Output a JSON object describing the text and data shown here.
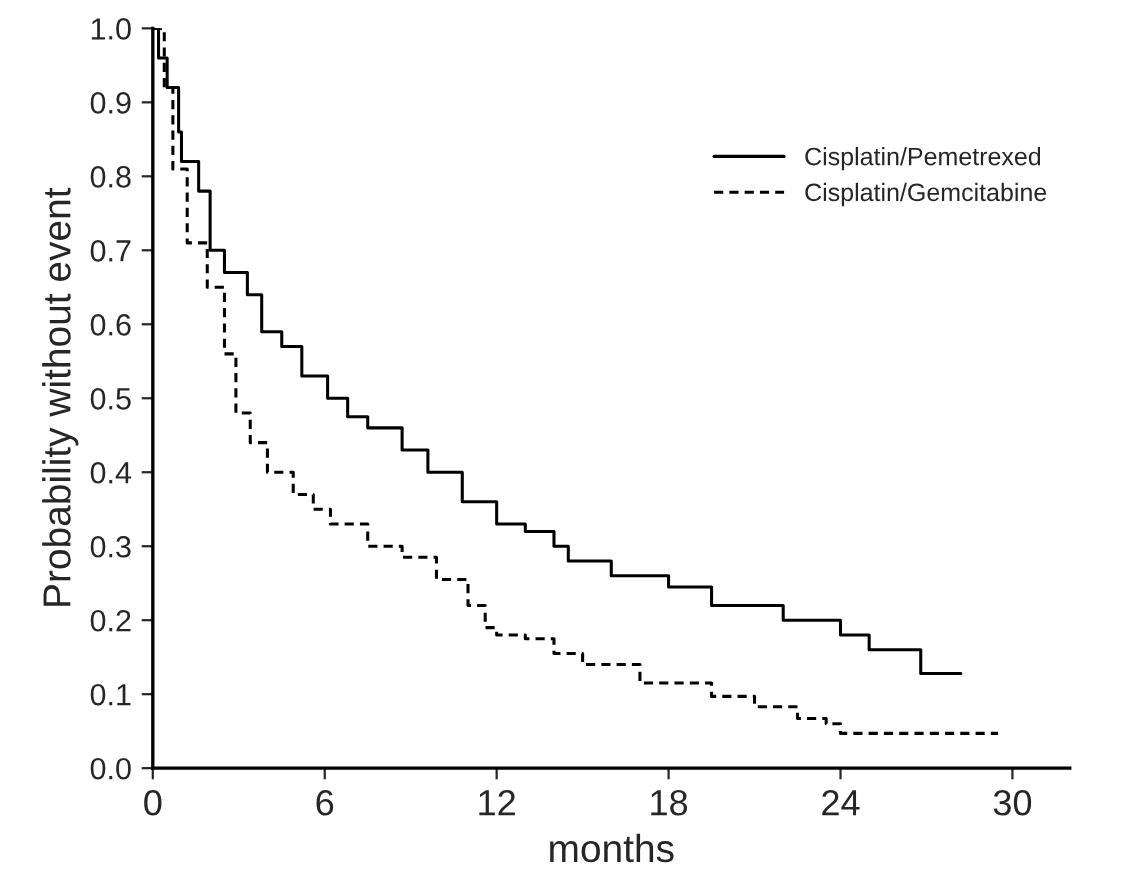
{
  "chart_data": {
    "type": "step",
    "xlabel": "months",
    "ylabel": "Probability without event",
    "xlim": [
      0,
      32
    ],
    "ylim": [
      0,
      1
    ],
    "xticks": [
      0,
      6,
      12,
      18,
      24,
      30
    ],
    "yticks": [
      {
        "value": 0,
        "label": "0.0"
      },
      {
        "value": 0.1,
        "label": "0.1"
      },
      {
        "value": 0.2,
        "label": "0.2"
      },
      {
        "value": 0.3,
        "label": "0.3"
      },
      {
        "value": 0.4,
        "label": "0.4"
      },
      {
        "value": 0.5,
        "label": "0.5"
      },
      {
        "value": 0.6,
        "label": "0.6"
      },
      {
        "value": 0.7,
        "label": "0.7"
      },
      {
        "value": 0.8,
        "label": "0.8"
      },
      {
        "value": 0.9,
        "label": "0.9"
      },
      {
        "value": 1,
        "label": "1.0"
      }
    ],
    "grid": false,
    "legend": "top right",
    "series": [
      {
        "name": "Cisplatin/Pemetrexed",
        "color": "#000000",
        "line_style": "solid",
        "x": [
          0,
          0.2,
          0.5,
          0.9,
          1,
          1.6,
          2,
          2.5,
          3.3,
          3.8,
          4.5,
          5.2,
          6.1,
          6.8,
          7.5,
          8.7,
          9.6,
          10.8,
          12,
          13,
          14,
          14.5,
          16,
          18,
          19.5,
          22,
          24,
          25,
          26.8,
          28.2
        ],
        "values": [
          1,
          0.96,
          0.92,
          0.86,
          0.82,
          0.78,
          0.7,
          0.67,
          0.64,
          0.59,
          0.57,
          0.53,
          0.5,
          0.475,
          0.46,
          0.43,
          0.4,
          0.36,
          0.33,
          0.32,
          0.3,
          0.28,
          0.26,
          0.245,
          0.22,
          0.2,
          0.18,
          0.16,
          0.128,
          0.128
        ]
      },
      {
        "name": "Cisplatin/Gemcitabine",
        "color": "#000000",
        "line_style": "dashed",
        "x": [
          0,
          0.4,
          0.7,
          1.2,
          1.9,
          2.5,
          2.9,
          3.4,
          4,
          4.9,
          5.6,
          6.2,
          7.5,
          8.7,
          9.9,
          11,
          11.6,
          12,
          13,
          14,
          15,
          17,
          19.5,
          21,
          22.5,
          23.5,
          24,
          29.5
        ],
        "values": [
          1,
          0.92,
          0.81,
          0.71,
          0.65,
          0.56,
          0.48,
          0.44,
          0.4,
          0.37,
          0.35,
          0.33,
          0.3,
          0.285,
          0.255,
          0.22,
          0.19,
          0.18,
          0.175,
          0.155,
          0.14,
          0.115,
          0.097,
          0.083,
          0.067,
          0.06,
          0.047,
          0.047
        ]
      }
    ]
  }
}
